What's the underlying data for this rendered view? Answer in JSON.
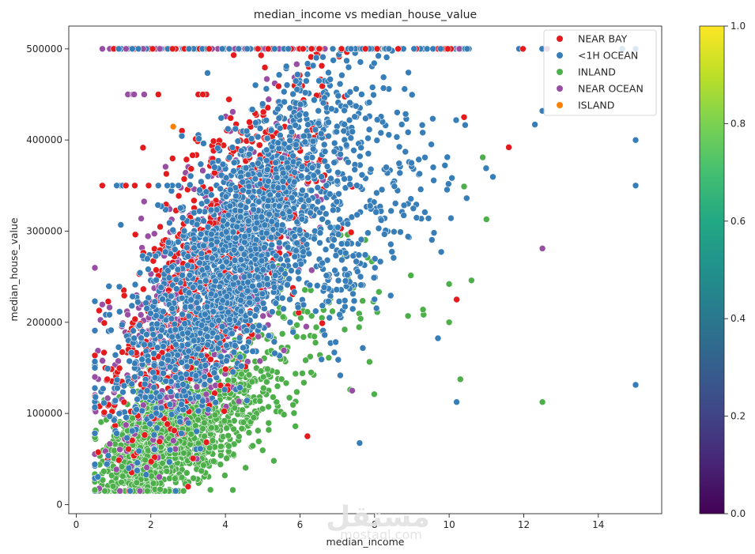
{
  "chart_data": {
    "type": "scatter",
    "title": "median_income vs median_house_value",
    "xlabel": "median_income",
    "ylabel": "median_house_value",
    "xlim": [
      -0.2,
      15.7
    ],
    "ylim": [
      -10000,
      525000
    ],
    "x_ticks": [
      0,
      2,
      4,
      6,
      8,
      10,
      12,
      14
    ],
    "y_ticks": [
      0,
      100000,
      200000,
      300000,
      400000,
      500000
    ],
    "grid": false,
    "legend_position": "top-right",
    "series": [
      {
        "name": "NEAR BAY",
        "color": "#e41a1c",
        "key": "near_bay"
      },
      {
        "name": "<1H OCEAN",
        "color": "#377eb8",
        "key": "oh_ocean"
      },
      {
        "name": "INLAND",
        "color": "#4daf4a",
        "key": "inland"
      },
      {
        "name": "NEAR OCEAN",
        "color": "#984ea3",
        "key": "near_ocean"
      },
      {
        "name": "ISLAND",
        "color": "#ff7f00",
        "key": "island"
      }
    ],
    "outliers": [
      {
        "series": "<1H OCEAN",
        "x": 15.0,
        "y": 500001
      },
      {
        "series": "<1H OCEAN",
        "x": 15.0,
        "y": 400000
      },
      {
        "series": "<1H OCEAN",
        "x": 15.0,
        "y": 350000
      },
      {
        "series": "<1H OCEAN",
        "x": 15.0,
        "y": 131300
      },
      {
        "series": "<1H OCEAN",
        "x": 12.3,
        "y": 417000
      },
      {
        "series": "<1H OCEAN",
        "x": 12.5,
        "y": 432000
      },
      {
        "series": "<1H OCEAN",
        "x": 10.2,
        "y": 112500
      },
      {
        "series": "<1H OCEAN",
        "x": 9.7,
        "y": 182500
      },
      {
        "series": "<1H OCEAN",
        "x": 7.6,
        "y": 67500
      },
      {
        "series": "<1H OCEAN",
        "x": 8.9,
        "y": 294000
      },
      {
        "series": "NEAR BAY",
        "x": 11.6,
        "y": 392000
      },
      {
        "series": "NEAR BAY",
        "x": 10.2,
        "y": 225000
      },
      {
        "series": "NEAR BAY",
        "x": 10.4,
        "y": 425000
      },
      {
        "series": "NEAR BAY",
        "x": 6.2,
        "y": 75000
      },
      {
        "series": "INLAND",
        "x": 12.5,
        "y": 112500
      },
      {
        "series": "INLAND",
        "x": 11.0,
        "y": 313000
      },
      {
        "series": "INLAND",
        "x": 10.6,
        "y": 246000
      },
      {
        "series": "INLAND",
        "x": 10.4,
        "y": 349000
      },
      {
        "series": "INLAND",
        "x": 10.0,
        "y": 242000
      },
      {
        "series": "INLAND",
        "x": 10.0,
        "y": 200000
      },
      {
        "series": "INLAND",
        "x": 10.3,
        "y": 137500
      },
      {
        "series": "INLAND",
        "x": 10.9,
        "y": 381000
      },
      {
        "series": "INLAND",
        "x": 9.3,
        "y": 214000
      },
      {
        "series": "INLAND",
        "x": 5.3,
        "y": 48000
      },
      {
        "series": "INLAND",
        "x": 4.2,
        "y": 16000
      },
      {
        "series": "INLAND",
        "x": 0.5,
        "y": 16000
      },
      {
        "series": "NEAR OCEAN",
        "x": 12.5,
        "y": 281000
      },
      {
        "series": "NEAR OCEAN",
        "x": 7.4,
        "y": 125000
      },
      {
        "series": "NEAR OCEAN",
        "x": 0.7,
        "y": 500001
      },
      {
        "series": "ISLAND",
        "x": 2.6,
        "y": 414700
      }
    ],
    "colorbar": {
      "colormap": "viridis",
      "range": [
        0.0,
        1.0
      ],
      "ticks": [
        "0.0",
        "0.2",
        "0.4",
        "0.6",
        "0.8",
        "1.0"
      ]
    }
  },
  "watermark": {
    "text_ar": "مستقل",
    "text_en": "mostaql.com"
  }
}
